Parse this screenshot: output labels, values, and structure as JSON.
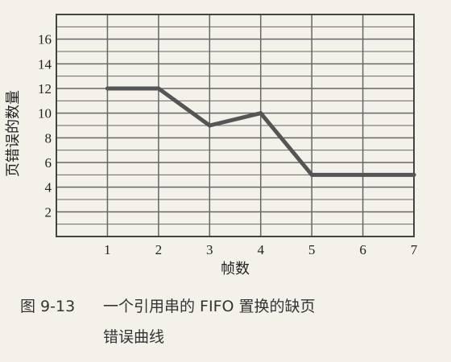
{
  "chart_data": {
    "type": "line",
    "title": "",
    "xlabel": "帧数",
    "ylabel": "页错误的数量",
    "x": [
      1,
      2,
      3,
      4,
      5,
      6,
      7
    ],
    "series": [
      {
        "values": [
          12,
          12,
          9,
          10,
          5,
          5,
          5
        ]
      }
    ],
    "xlim": [
      0,
      7
    ],
    "ylim": [
      0,
      18
    ],
    "xticks": [
      "1",
      "2",
      "3",
      "4",
      "5",
      "6",
      "7"
    ],
    "yticks": [
      "2",
      "4",
      "6",
      "8",
      "10",
      "12",
      "14",
      "16"
    ],
    "grid": true,
    "line_color": "#555555"
  },
  "caption": {
    "figure_number": "图 9-13",
    "line1": "一个引用串的 FIFO 置换的缺页",
    "line2": "错误曲线"
  }
}
